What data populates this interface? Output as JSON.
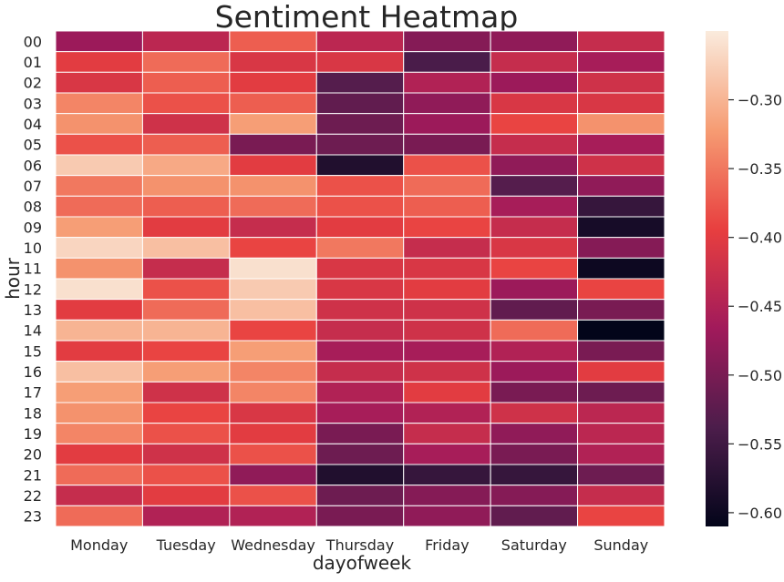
{
  "chart_data": {
    "type": "heatmap",
    "title": "Sentiment Heatmap",
    "xlabel": "dayofweek",
    "ylabel": "hour",
    "x_categories": [
      "Monday",
      "Tuesday",
      "Wednesday",
      "Thursday",
      "Friday",
      "Saturday",
      "Sunday"
    ],
    "y_categories": [
      "00",
      "01",
      "02",
      "03",
      "04",
      "05",
      "06",
      "07",
      "08",
      "09",
      "10",
      "11",
      "12",
      "13",
      "14",
      "15",
      "16",
      "17",
      "18",
      "19",
      "20",
      "21",
      "22",
      "23"
    ],
    "values": [
      [
        -0.47,
        -0.44,
        -0.37,
        -0.44,
        -0.49,
        -0.48,
        -0.43
      ],
      [
        -0.4,
        -0.36,
        -0.41,
        -0.41,
        -0.54,
        -0.43,
        -0.46
      ],
      [
        -0.41,
        -0.37,
        -0.4,
        -0.53,
        -0.45,
        -0.47,
        -0.42
      ],
      [
        -0.34,
        -0.38,
        -0.37,
        -0.52,
        -0.48,
        -0.41,
        -0.41
      ],
      [
        -0.33,
        -0.42,
        -0.32,
        -0.51,
        -0.47,
        -0.39,
        -0.33
      ],
      [
        -0.38,
        -0.37,
        -0.5,
        -0.51,
        -0.5,
        -0.43,
        -0.46
      ],
      [
        -0.28,
        -0.31,
        -0.4,
        -0.58,
        -0.38,
        -0.48,
        -0.42
      ],
      [
        -0.35,
        -0.33,
        -0.33,
        -0.38,
        -0.36,
        -0.53,
        -0.48
      ],
      [
        -0.36,
        -0.37,
        -0.36,
        -0.38,
        -0.37,
        -0.46,
        -0.56
      ],
      [
        -0.32,
        -0.4,
        -0.43,
        -0.4,
        -0.39,
        -0.43,
        -0.59
      ],
      [
        -0.27,
        -0.29,
        -0.39,
        -0.35,
        -0.43,
        -0.41,
        -0.49
      ],
      [
        -0.33,
        -0.43,
        -0.26,
        -0.41,
        -0.41,
        -0.39,
        -0.6
      ],
      [
        -0.26,
        -0.38,
        -0.28,
        -0.41,
        -0.4,
        -0.47,
        -0.39
      ],
      [
        -0.4,
        -0.36,
        -0.29,
        -0.42,
        -0.42,
        -0.52,
        -0.5
      ],
      [
        -0.3,
        -0.3,
        -0.39,
        -0.43,
        -0.42,
        -0.36,
        -0.61
      ],
      [
        -0.4,
        -0.39,
        -0.32,
        -0.46,
        -0.46,
        -0.45,
        -0.5
      ],
      [
        -0.29,
        -0.32,
        -0.34,
        -0.43,
        -0.42,
        -0.47,
        -0.4
      ],
      [
        -0.32,
        -0.42,
        -0.34,
        -0.45,
        -0.4,
        -0.5,
        -0.51
      ],
      [
        -0.33,
        -0.39,
        -0.41,
        -0.46,
        -0.45,
        -0.42,
        -0.44
      ],
      [
        -0.34,
        -0.38,
        -0.4,
        -0.5,
        -0.43,
        -0.48,
        -0.44
      ],
      [
        -0.4,
        -0.42,
        -0.38,
        -0.51,
        -0.46,
        -0.5,
        -0.45
      ],
      [
        -0.36,
        -0.38,
        -0.48,
        -0.58,
        -0.56,
        -0.56,
        -0.51
      ],
      [
        -0.43,
        -0.4,
        -0.38,
        -0.51,
        -0.49,
        -0.49,
        -0.43
      ],
      [
        -0.36,
        -0.45,
        -0.45,
        -0.5,
        -0.48,
        -0.52,
        -0.39
      ]
    ],
    "colorbar": {
      "range": [
        -0.61,
        -0.25
      ],
      "ticks": [
        -0.3,
        -0.35,
        -0.4,
        -0.45,
        -0.5,
        -0.55,
        -0.6
      ],
      "tick_labels": [
        "−0.30",
        "−0.35",
        "−0.40",
        "−0.45",
        "−0.50",
        "−0.55",
        "−0.60"
      ],
      "colormap": [
        "#03051a",
        "#4c1d4b",
        "#a11a5b",
        "#e83f3f",
        "#f69c73",
        "#faebdd"
      ]
    },
    "grid": false,
    "cell_border_color": "#ffffff"
  }
}
